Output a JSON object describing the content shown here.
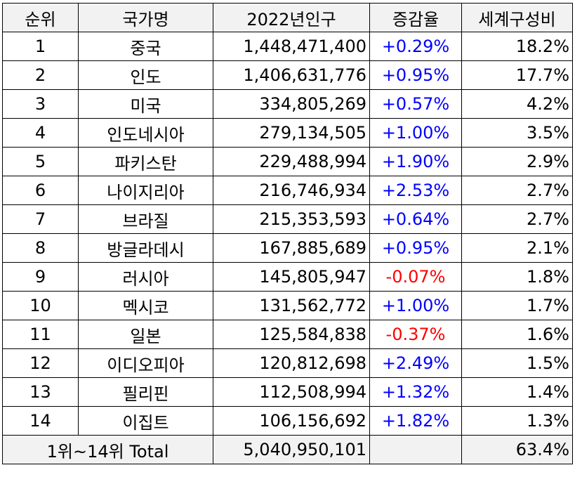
{
  "table": {
    "headers": [
      "순위",
      "국가명",
      "2022년인구",
      "증감율",
      "세계구성비"
    ],
    "rows": [
      {
        "rank": "1",
        "country": "중국",
        "population": "1,448,471,400",
        "change": "+0.29%",
        "share": "18.2%"
      },
      {
        "rank": "2",
        "country": "인도",
        "population": "1,406,631,776",
        "change": "+0.95%",
        "share": "17.7%"
      },
      {
        "rank": "3",
        "country": "미국",
        "population": "334,805,269",
        "change": "+0.57%",
        "share": "4.2%"
      },
      {
        "rank": "4",
        "country": "인도네시아",
        "population": "279,134,505",
        "change": "+1.00%",
        "share": "3.5%"
      },
      {
        "rank": "5",
        "country": "파키스탄",
        "population": "229,488,994",
        "change": "+1.90%",
        "share": "2.9%"
      },
      {
        "rank": "6",
        "country": "나이지리아",
        "population": "216,746,934",
        "change": "+2.53%",
        "share": "2.7%"
      },
      {
        "rank": "7",
        "country": "브라질",
        "population": "215,353,593",
        "change": "+0.64%",
        "share": "2.7%"
      },
      {
        "rank": "8",
        "country": "방글라데시",
        "population": "167,885,689",
        "change": "+0.95%",
        "share": "2.1%"
      },
      {
        "rank": "9",
        "country": "러시아",
        "population": "145,805,947",
        "change": "-0.07%",
        "share": "1.8%"
      },
      {
        "rank": "10",
        "country": "멕시코",
        "population": "131,562,772",
        "change": "+1.00%",
        "share": "1.7%"
      },
      {
        "rank": "11",
        "country": "일본",
        "population": "125,584,838",
        "change": "-0.37%",
        "share": "1.6%"
      },
      {
        "rank": "12",
        "country": "이디오피아",
        "population": "120,812,698",
        "change": "+2.49%",
        "share": "1.5%"
      },
      {
        "rank": "13",
        "country": "필리핀",
        "population": "112,508,994",
        "change": "+1.32%",
        "share": "1.4%"
      },
      {
        "rank": "14",
        "country": "이집트",
        "population": "106,156,692",
        "change": "+1.82%",
        "share": "1.3%"
      }
    ],
    "total": {
      "label": "1위~14위 Total",
      "population": "5,040,950,101",
      "change": "",
      "share": "63.4%"
    }
  },
  "colors": {
    "positive_change": "#0000ff",
    "negative_change": "#ff0000",
    "header_fill": "#f2f2f2",
    "grid": "#000000"
  }
}
